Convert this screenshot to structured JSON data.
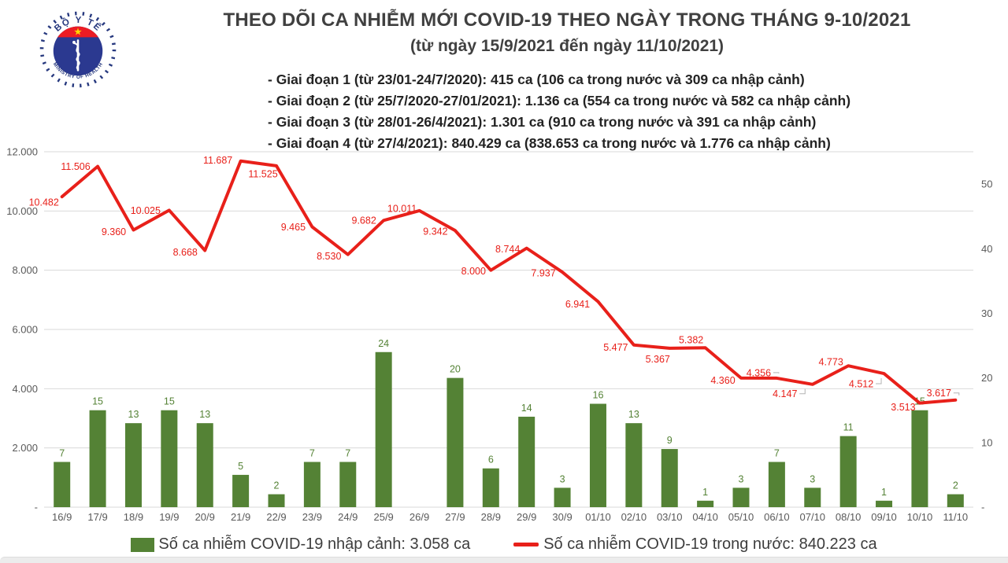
{
  "logo": {
    "top_text": "BỘ Y TẾ",
    "bottom_text": "MINISTRY OF HEALTH"
  },
  "header": {
    "title": "THEO DÕI CA NHIỄM MỚI COVID-19 THEO NGÀY TRONG THÁNG 9-10/2021",
    "subtitle": "(từ ngày 15/9/2021 đến ngày 11/10/2021)",
    "phases": [
      "- Giai đoạn 1 (từ 23/01-24/7/2020): 415 ca (106 ca trong nước và 309 ca nhập cảnh)",
      "- Giai đoạn 2 (từ 25/7/2020-27/01/2021): 1.136 ca (554 ca trong nước và 582 ca nhập cảnh)",
      "- Giai đoạn 3 (từ 28/01-26/4/2021): 1.301 ca (910 ca trong nước và 391 ca nhập cảnh)",
      "- Giai đoạn 4 (từ 27/4/2021): 840.429 ca (838.653 ca trong nước và 1.776 ca nhập cảnh)"
    ]
  },
  "chart_data": {
    "type": "combo-bar-line",
    "categories": [
      "16/9",
      "17/9",
      "18/9",
      "19/9",
      "20/9",
      "21/9",
      "22/9",
      "23/9",
      "24/9",
      "25/9",
      "26/9",
      "27/9",
      "28/9",
      "29/9",
      "30/9",
      "01/10",
      "02/10",
      "03/10",
      "04/10",
      "05/10",
      "06/10",
      "07/10",
      "08/10",
      "09/10",
      "10/10",
      "11/10"
    ],
    "series": [
      {
        "name": "Số ca nhiễm COVID-19 nhập cảnh",
        "type": "bar",
        "axis": "right",
        "color": "#548235",
        "values": [
          7,
          15,
          13,
          15,
          13,
          5,
          2,
          7,
          7,
          24,
          null,
          20,
          6,
          14,
          3,
          16,
          13,
          9,
          1,
          3,
          7,
          3,
          11,
          1,
          15,
          2
        ]
      },
      {
        "name": "Số ca nhiễm COVID-19 trong nước",
        "type": "line",
        "axis": "left",
        "color": "#e8201a",
        "values": [
          10482,
          11506,
          9360,
          10025,
          8668,
          11687,
          11525,
          9465,
          8530,
          9682,
          10011,
          9342,
          8000,
          8744,
          7937,
          6941,
          5477,
          5367,
          5382,
          4360,
          4356,
          4147,
          4773,
          4512,
          3513,
          3617
        ]
      }
    ],
    "left_axis": {
      "max": 12000,
      "tick_start": 12000,
      "tick_step": 2000,
      "labels": [
        "12.000",
        "10.000",
        "8.000",
        "6.000",
        "4.000",
        "2.000",
        "-"
      ]
    },
    "right_axis": {
      "max": 55,
      "tick_start": 50,
      "tick_step": 10,
      "labels": [
        "50",
        "40",
        "30",
        "20",
        "10",
        "-"
      ]
    },
    "grid": "horizontal",
    "legend_position": "bottom"
  },
  "legend": {
    "bar_label": "Số ca nhiễm COVID-19 nhập cảnh: 3.058 ca",
    "line_label": "Số ca nhiễm COVID-19 trong nước: 840.223 ca"
  },
  "colors": {
    "bar": "#548235",
    "line": "#e8201a",
    "axis_text": "#595959",
    "gridline": "#d9d9d9",
    "title_text": "#404040"
  }
}
